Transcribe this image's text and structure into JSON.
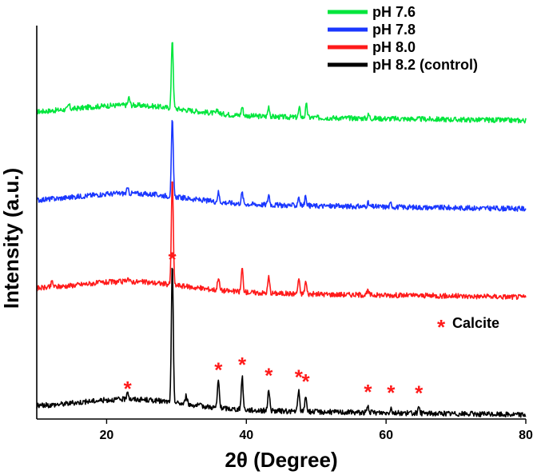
{
  "chart_data": {
    "type": "line",
    "xlabel": "2θ (Degree)",
    "ylabel": "Intensity (a.u.)",
    "xlim": [
      10,
      80
    ],
    "x_ticks": [
      20,
      40,
      60,
      80
    ],
    "y_ticks_shown": false,
    "grid": false,
    "legend_position": "top-right",
    "series": [
      {
        "name": "pH 7.6",
        "color": "#00e63c",
        "offset": 4.0,
        "peaks": [
          [
            14.6,
            0.06
          ],
          [
            23.2,
            0.1
          ],
          [
            29.4,
            0.95
          ],
          [
            35.9,
            0.05
          ],
          [
            39.4,
            0.12
          ],
          [
            43.2,
            0.14
          ],
          [
            47.6,
            0.12
          ],
          [
            48.6,
            0.17
          ],
          [
            57.5,
            0.05
          ]
        ]
      },
      {
        "name": "pH 7.8",
        "color": "#1a37ff",
        "offset": 2.8,
        "peaks": [
          [
            23.0,
            0.06
          ],
          [
            29.4,
            1.05
          ],
          [
            36.0,
            0.13
          ],
          [
            39.4,
            0.15
          ],
          [
            43.2,
            0.14
          ],
          [
            47.5,
            0.12
          ],
          [
            48.5,
            0.13
          ],
          [
            57.4,
            0.05
          ],
          [
            60.7,
            0.05
          ]
        ]
      },
      {
        "name": "pH 8.0",
        "color": "#ff1a1a",
        "offset": 1.6,
        "peaks": [
          [
            12.2,
            0.08
          ],
          [
            23.0,
            0.06
          ],
          [
            29.4,
            1.48
          ],
          [
            36.0,
            0.18
          ],
          [
            39.4,
            0.32
          ],
          [
            43.2,
            0.22
          ],
          [
            47.5,
            0.2
          ],
          [
            48.5,
            0.17
          ],
          [
            57.4,
            0.05
          ]
        ]
      },
      {
        "name": "pH 8.2 (control)",
        "color": "#000000",
        "offset": 0.0,
        "peaks": [
          [
            23.0,
            0.12
          ],
          [
            29.4,
            1.88
          ],
          [
            31.4,
            0.12
          ],
          [
            36.0,
            0.38
          ],
          [
            39.4,
            0.45
          ],
          [
            43.2,
            0.3
          ],
          [
            47.5,
            0.28
          ],
          [
            48.5,
            0.22
          ],
          [
            57.4,
            0.08
          ],
          [
            60.7,
            0.07
          ],
          [
            64.7,
            0.06
          ]
        ]
      }
    ],
    "annotations": {
      "symbol": "*",
      "label": "Calcite",
      "color": "#ff1a1a",
      "peak_positions": [
        23.0,
        29.4,
        36.0,
        39.4,
        43.2,
        47.5,
        48.5,
        57.4,
        60.7,
        64.7
      ]
    }
  }
}
